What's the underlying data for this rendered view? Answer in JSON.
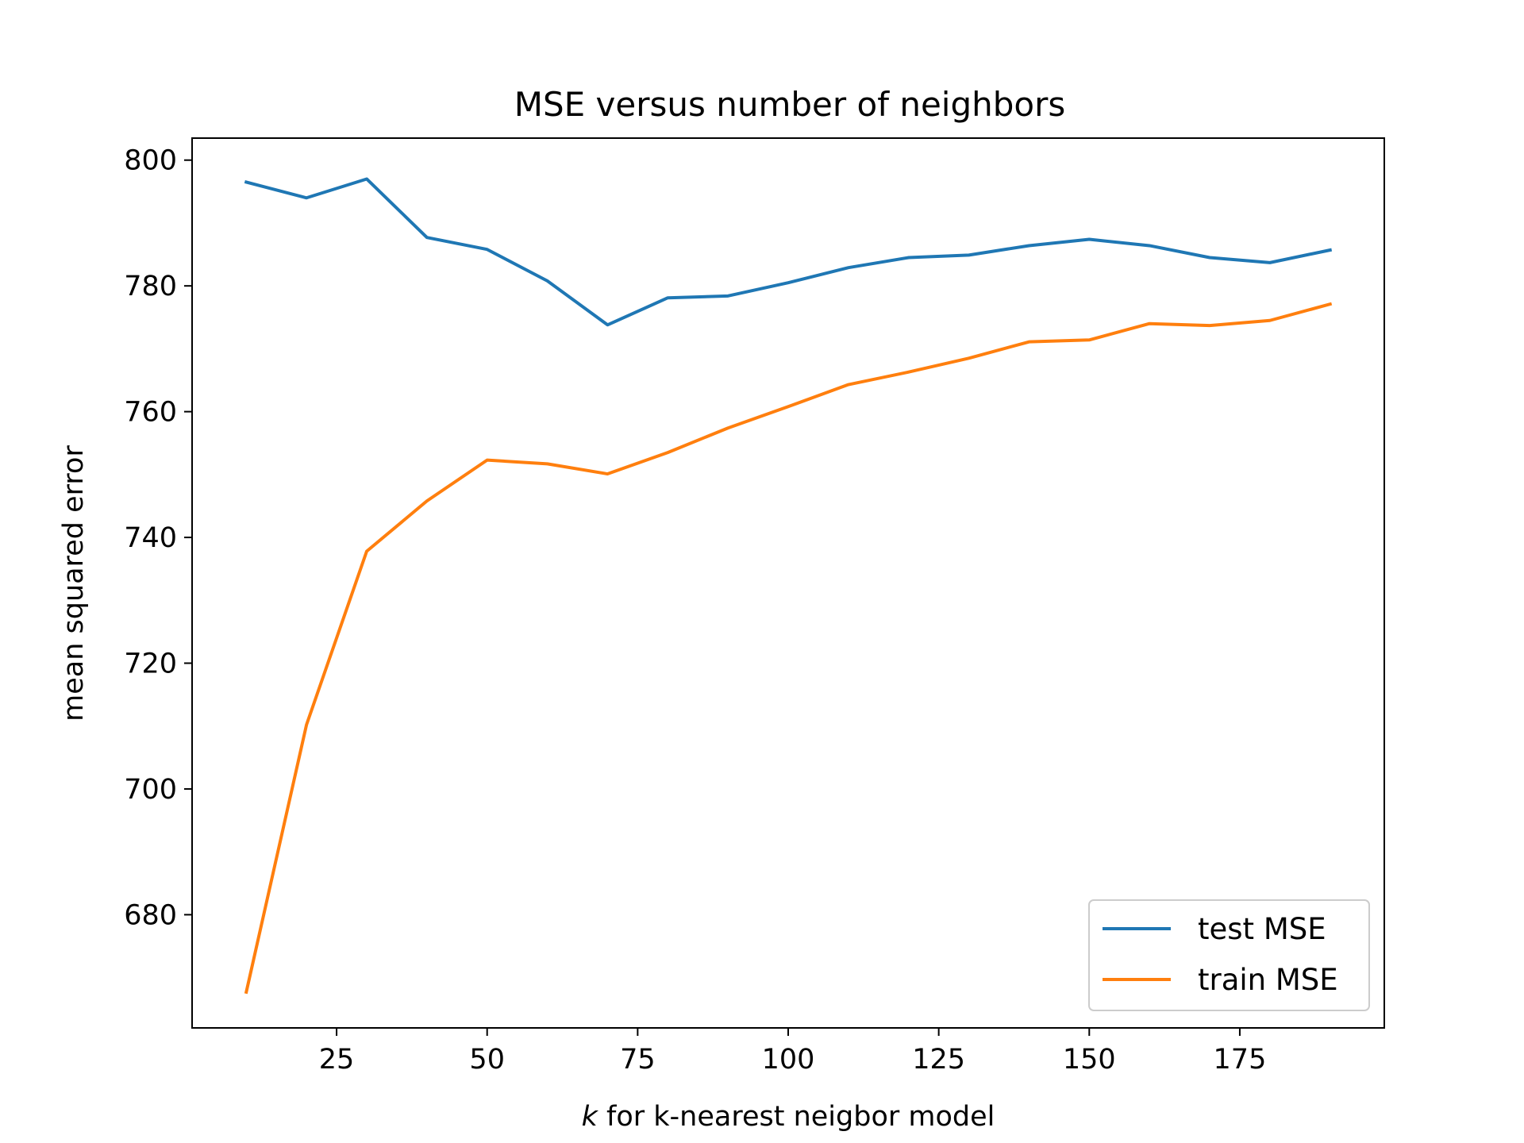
{
  "chart_data": {
    "type": "line",
    "title": "MSE versus number of neighbors",
    "xlabel_var": "k",
    "xlabel_rest": " for k-nearest neigbor model",
    "ylabel": "mean squared error",
    "xlim": [
      1,
      199
    ],
    "ylim": [
      662,
      803.5
    ],
    "xticks": [
      25,
      50,
      75,
      100,
      125,
      150,
      175
    ],
    "yticks": [
      680,
      700,
      720,
      740,
      760,
      780,
      800
    ],
    "grid": false,
    "legend_position": "lower right",
    "x": [
      10,
      20,
      30,
      40,
      50,
      60,
      70,
      80,
      90,
      100,
      110,
      120,
      130,
      140,
      150,
      160,
      170,
      180,
      190
    ],
    "series": [
      {
        "name": "test MSE",
        "color": "#1f77b4",
        "values": [
          796.5,
          794.0,
          797.0,
          787.7,
          785.8,
          780.8,
          773.8,
          778.1,
          778.4,
          780.5,
          782.9,
          784.5,
          784.9,
          786.4,
          787.4,
          786.4,
          784.5,
          783.7,
          785.7
        ]
      },
      {
        "name": "train MSE",
        "color": "#ff7f0e",
        "values": [
          667.7,
          710.2,
          737.8,
          745.8,
          752.3,
          751.7,
          750.1,
          753.5,
          757.4,
          760.8,
          764.3,
          766.3,
          768.5,
          771.1,
          771.4,
          774.0,
          773.7,
          774.5,
          777.1
        ]
      }
    ]
  }
}
